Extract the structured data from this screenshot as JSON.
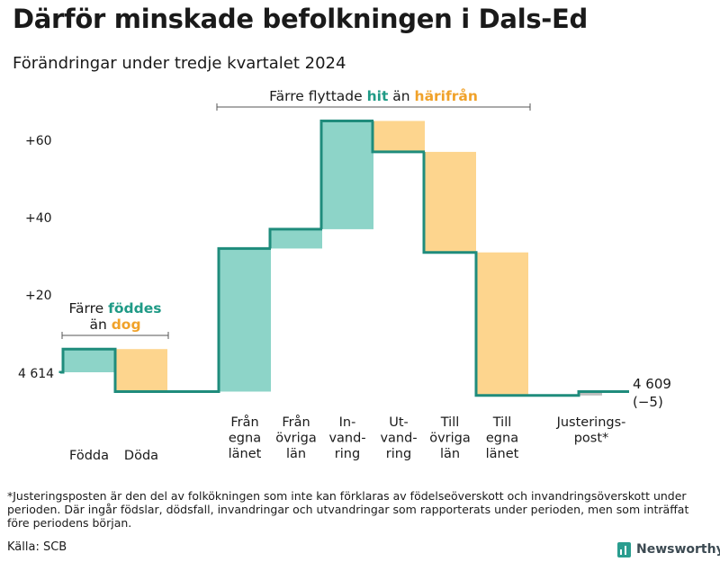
{
  "title": "Därför minskade befolkningen i Dals-Ed",
  "subtitle": "Förändringar under tredje kvartalet 2024",
  "footnote": "*Justeringsposten är den del av folkökningen som inte kan förklaras av födelseöverskott och invandringsöverskott under perioden. Där ingår födslar, dödsfall, invandringar och utvandringar som rapporterats under perioden, men som inträffat före periodens början.",
  "source": "Källa: SCB",
  "brand": "Newsworthy",
  "colors": {
    "inflow": "#8dd4c8",
    "outflow": "#fdd58e",
    "line": "#1f8c7c",
    "adjust": "#bdbdbd",
    "accent_text": "#1f9a86",
    "orange_text": "#f0a22a"
  },
  "chart_data": {
    "type": "waterfall",
    "start_value": 4614,
    "start_label": "4 614",
    "end_label": "4 609",
    "end_change_label": "(−5)",
    "y_ticks": [
      "+60",
      "+40",
      "+20"
    ],
    "y_tick_values": [
      60,
      40,
      20
    ],
    "y_baseline_label": "4 614",
    "steps": [
      {
        "label": "Födda",
        "change": 6,
        "kind": "inflow",
        "group": "births"
      },
      {
        "label": "Döda",
        "change": -11,
        "kind": "outflow",
        "group": "births"
      },
      {
        "label": "Från\negna\nlänet",
        "change": 37,
        "kind": "inflow",
        "group": "migration"
      },
      {
        "label": "Från\növriga\nlän",
        "change": 5,
        "kind": "inflow",
        "group": "migration"
      },
      {
        "label": "In-\nvand-\nring",
        "change": 28,
        "kind": "inflow",
        "group": "migration"
      },
      {
        "label": "Ut-\nvand-\nring",
        "change": -8,
        "kind": "outflow",
        "group": "migration"
      },
      {
        "label": "Till\növriga\nlän",
        "change": -26,
        "kind": "outflow",
        "group": "migration"
      },
      {
        "label": "Till\negna\nlänet",
        "change": -37,
        "kind": "outflow",
        "group": "migration"
      },
      {
        "label": "Justerings-\npost*",
        "change": 1,
        "kind": "adjust",
        "group": "adjust"
      }
    ],
    "annotations": {
      "births": {
        "line1": "Färre",
        "word1": "föddes",
        "line2": "än",
        "word2": "dog"
      },
      "migration": {
        "pre": "Färre flyttade",
        "word1": "hit",
        "mid": "än",
        "word2": "härifrån"
      }
    }
  }
}
